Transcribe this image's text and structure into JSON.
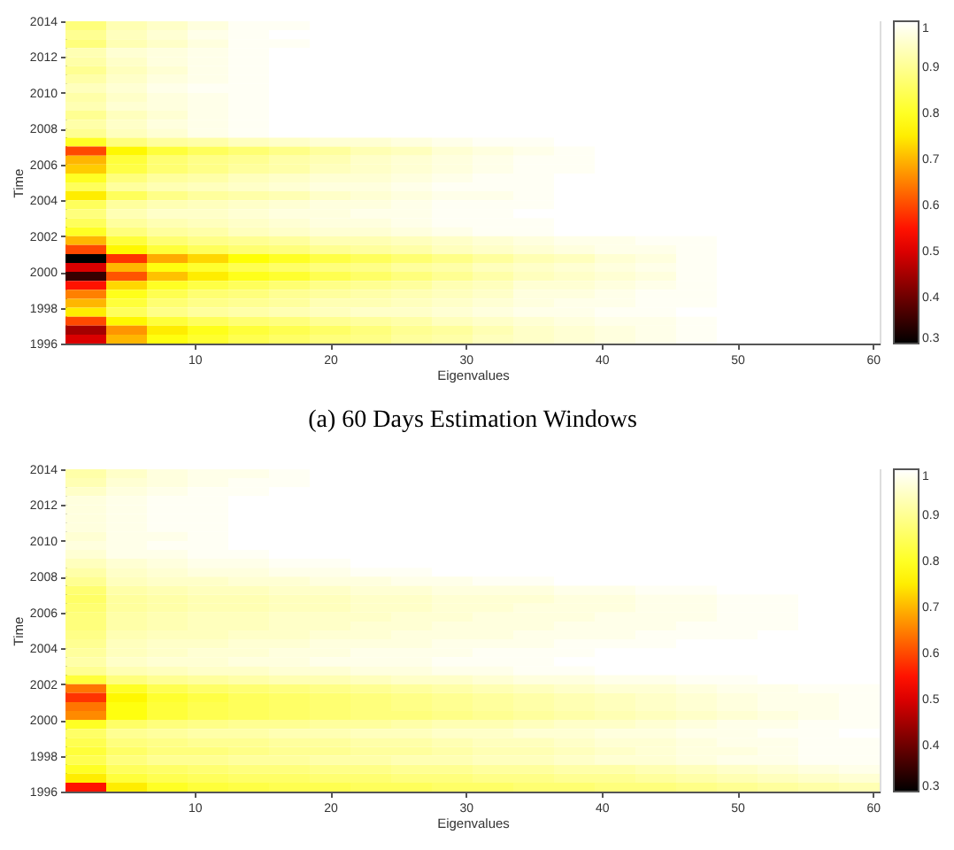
{
  "chart_data": [
    {
      "type": "heatmap",
      "xlabel": "Eigenvalues",
      "ylabel": "Time",
      "annotations": [
        "(a) 60 Days Estimation Windows"
      ],
      "x": [
        2,
        5,
        8,
        11,
        14,
        17,
        20,
        23,
        26,
        29,
        32,
        35,
        38,
        41,
        44,
        47,
        50,
        53,
        56,
        59
      ],
      "y": [
        2013.75,
        2013.25,
        2012.75,
        2012.25,
        2011.75,
        2011.25,
        2010.75,
        2010.25,
        2009.75,
        2009.25,
        2008.75,
        2008.25,
        2007.75,
        2007.25,
        2006.75,
        2006.25,
        2005.75,
        2005.25,
        2004.75,
        2004.25,
        2003.75,
        2003.25,
        2002.75,
        2002.25,
        2001.75,
        2001.25,
        2000.75,
        2000.25,
        1999.75,
        1999.25,
        1998.75,
        1998.25,
        1997.75,
        1997.25,
        1996.75,
        1996.25
      ],
      "xlim": [
        0.5,
        60.5
      ],
      "ylim": [
        1996,
        2014
      ],
      "xticks": [
        10,
        20,
        30,
        40,
        50,
        60
      ],
      "yticks": [
        1996,
        1998,
        2000,
        2002,
        2004,
        2006,
        2008,
        2010,
        2012,
        2014
      ],
      "clim": [
        0.3,
        1
      ],
      "cticks": [
        0.3,
        0.4,
        0.5,
        0.6,
        0.7,
        0.8,
        0.9,
        1
      ],
      "cells": [
        [
          0.88,
          0.93,
          0.95,
          0.97,
          0.99,
          0.99,
          1,
          1,
          1,
          1,
          1,
          1,
          1,
          1,
          1,
          1,
          1,
          1,
          1,
          1
        ],
        [
          0.9,
          0.94,
          0.96,
          0.98,
          0.99,
          1,
          1,
          1,
          1,
          1,
          1,
          1,
          1,
          1,
          1,
          1,
          1,
          1,
          1,
          1
        ],
        [
          0.88,
          0.93,
          0.95,
          0.97,
          0.99,
          0.99,
          1,
          1,
          1,
          1,
          1,
          1,
          1,
          1,
          1,
          1,
          1,
          1,
          1,
          1
        ],
        [
          0.93,
          0.96,
          0.97,
          0.98,
          0.99,
          1,
          1,
          1,
          1,
          1,
          1,
          1,
          1,
          1,
          1,
          1,
          1,
          1,
          1,
          1
        ],
        [
          0.92,
          0.95,
          0.97,
          0.98,
          0.99,
          1,
          1,
          1,
          1,
          1,
          1,
          1,
          1,
          1,
          1,
          1,
          1,
          1,
          1,
          1
        ],
        [
          0.9,
          0.94,
          0.96,
          0.98,
          0.99,
          1,
          1,
          1,
          1,
          1,
          1,
          1,
          1,
          1,
          1,
          1,
          1,
          1,
          1,
          1
        ],
        [
          0.92,
          0.95,
          0.97,
          0.98,
          0.99,
          1,
          1,
          1,
          1,
          1,
          1,
          1,
          1,
          1,
          1,
          1,
          1,
          1,
          1,
          1
        ],
        [
          0.94,
          0.96,
          0.98,
          0.99,
          0.99,
          1,
          1,
          1,
          1,
          1,
          1,
          1,
          1,
          1,
          1,
          1,
          1,
          1,
          1,
          1
        ],
        [
          0.92,
          0.95,
          0.97,
          0.98,
          0.99,
          1,
          1,
          1,
          1,
          1,
          1,
          1,
          1,
          1,
          1,
          1,
          1,
          1,
          1,
          1
        ],
        [
          0.93,
          0.96,
          0.97,
          0.98,
          0.99,
          1,
          1,
          1,
          1,
          1,
          1,
          1,
          1,
          1,
          1,
          1,
          1,
          1,
          1,
          1
        ],
        [
          0.9,
          0.94,
          0.96,
          0.98,
          0.99,
          1,
          1,
          1,
          1,
          1,
          1,
          1,
          1,
          1,
          1,
          1,
          1,
          1,
          1,
          1
        ],
        [
          0.92,
          0.95,
          0.97,
          0.98,
          0.99,
          1,
          1,
          1,
          1,
          1,
          1,
          1,
          1,
          1,
          1,
          1,
          1,
          1,
          1,
          1
        ],
        [
          0.9,
          0.94,
          0.96,
          0.98,
          0.99,
          1,
          1,
          1,
          1,
          1,
          1,
          1,
          1,
          1,
          1,
          1,
          1,
          1,
          1,
          1
        ],
        [
          0.8,
          0.88,
          0.91,
          0.92,
          0.94,
          0.95,
          0.96,
          0.96,
          0.97,
          0.98,
          0.99,
          0.99,
          1,
          1,
          1,
          1,
          1,
          1,
          1,
          1
        ],
        [
          0.6,
          0.76,
          0.82,
          0.85,
          0.87,
          0.89,
          0.91,
          0.93,
          0.94,
          0.96,
          0.97,
          0.98,
          0.99,
          1,
          1,
          1,
          1,
          1,
          1,
          1
        ],
        [
          0.7,
          0.82,
          0.87,
          0.89,
          0.9,
          0.92,
          0.93,
          0.95,
          0.96,
          0.97,
          0.98,
          0.99,
          0.99,
          1,
          1,
          1,
          1,
          1,
          1,
          1
        ],
        [
          0.72,
          0.83,
          0.87,
          0.89,
          0.91,
          0.92,
          0.94,
          0.95,
          0.96,
          0.97,
          0.98,
          0.99,
          0.99,
          1,
          1,
          1,
          1,
          1,
          1,
          1
        ],
        [
          0.8,
          0.88,
          0.91,
          0.92,
          0.94,
          0.95,
          0.96,
          0.96,
          0.97,
          0.98,
          0.99,
          0.99,
          1,
          1,
          1,
          1,
          1,
          1,
          1,
          1
        ],
        [
          0.85,
          0.91,
          0.93,
          0.94,
          0.95,
          0.96,
          0.97,
          0.97,
          0.98,
          0.99,
          0.99,
          0.99,
          1,
          1,
          1,
          1,
          1,
          1,
          1,
          1
        ],
        [
          0.75,
          0.85,
          0.89,
          0.91,
          0.92,
          0.93,
          0.95,
          0.96,
          0.97,
          0.98,
          0.98,
          0.99,
          1,
          1,
          1,
          1,
          1,
          1,
          1,
          1
        ],
        [
          0.85,
          0.91,
          0.93,
          0.94,
          0.95,
          0.96,
          0.97,
          0.97,
          0.98,
          0.99,
          0.99,
          0.99,
          1,
          1,
          1,
          1,
          1,
          1,
          1,
          1
        ],
        [
          0.88,
          0.93,
          0.95,
          0.95,
          0.96,
          0.97,
          0.97,
          0.98,
          0.98,
          0.99,
          0.99,
          1,
          1,
          1,
          1,
          1,
          1,
          1,
          1,
          1
        ],
        [
          0.85,
          0.91,
          0.93,
          0.94,
          0.95,
          0.96,
          0.97,
          0.97,
          0.98,
          0.99,
          0.99,
          0.99,
          1,
          1,
          1,
          1,
          1,
          1,
          1,
          1
        ],
        [
          0.8,
          0.88,
          0.91,
          0.92,
          0.94,
          0.95,
          0.96,
          0.96,
          0.97,
          0.98,
          0.99,
          0.99,
          1,
          1,
          1,
          1,
          1,
          1,
          1,
          1
        ],
        [
          0.7,
          0.82,
          0.87,
          0.89,
          0.9,
          0.91,
          0.93,
          0.93,
          0.94,
          0.95,
          0.96,
          0.97,
          0.98,
          0.98,
          0.99,
          0.99,
          1,
          1,
          1,
          1
        ],
        [
          0.6,
          0.76,
          0.82,
          0.85,
          0.87,
          0.88,
          0.9,
          0.91,
          0.92,
          0.94,
          0.95,
          0.96,
          0.97,
          0.98,
          0.98,
          0.99,
          1,
          1,
          1,
          1
        ],
        [
          0.3,
          0.58,
          0.69,
          0.73,
          0.77,
          0.8,
          0.83,
          0.85,
          0.87,
          0.89,
          0.91,
          0.93,
          0.94,
          0.96,
          0.97,
          0.99,
          1,
          1,
          1,
          1
        ],
        [
          0.5,
          0.7,
          0.78,
          0.81,
          0.84,
          0.86,
          0.88,
          0.89,
          0.91,
          0.92,
          0.94,
          0.95,
          0.96,
          0.97,
          0.98,
          0.99,
          1,
          1,
          1,
          1
        ],
        [
          0.35,
          0.61,
          0.71,
          0.75,
          0.79,
          0.81,
          0.84,
          0.86,
          0.88,
          0.9,
          0.92,
          0.94,
          0.95,
          0.96,
          0.97,
          0.99,
          1,
          1,
          1,
          1
        ],
        [
          0.55,
          0.73,
          0.8,
          0.83,
          0.85,
          0.87,
          0.89,
          0.9,
          0.91,
          0.93,
          0.94,
          0.96,
          0.96,
          0.97,
          0.98,
          0.99,
          1,
          1,
          1,
          1
        ],
        [
          0.65,
          0.79,
          0.84,
          0.87,
          0.88,
          0.9,
          0.91,
          0.92,
          0.93,
          0.94,
          0.95,
          0.97,
          0.97,
          0.98,
          0.99,
          0.99,
          1,
          1,
          1,
          1
        ],
        [
          0.7,
          0.82,
          0.87,
          0.89,
          0.9,
          0.91,
          0.93,
          0.93,
          0.94,
          0.95,
          0.96,
          0.97,
          0.98,
          0.98,
          0.99,
          0.99,
          1,
          1,
          1,
          1
        ],
        [
          0.75,
          0.85,
          0.89,
          0.91,
          0.92,
          0.93,
          0.94,
          0.95,
          0.95,
          0.96,
          0.97,
          0.98,
          0.98,
          0.99,
          0.99,
          1,
          1,
          1,
          1,
          1
        ],
        [
          0.6,
          0.76,
          0.82,
          0.85,
          0.87,
          0.88,
          0.9,
          0.91,
          0.92,
          0.94,
          0.95,
          0.96,
          0.97,
          0.98,
          0.98,
          0.99,
          1,
          1,
          1,
          1
        ],
        [
          0.45,
          0.67,
          0.75,
          0.79,
          0.82,
          0.84,
          0.86,
          0.88,
          0.9,
          0.91,
          0.93,
          0.95,
          0.96,
          0.97,
          0.98,
          0.99,
          1,
          1,
          1,
          1
        ],
        [
          0.5,
          0.7,
          0.78,
          0.81,
          0.84,
          0.86,
          0.88,
          0.89,
          0.91,
          0.92,
          0.94,
          0.95,
          0.96,
          0.97,
          0.98,
          0.99,
          1,
          1,
          1,
          1
        ]
      ]
    },
    {
      "type": "heatmap",
      "xlabel": "Eigenvalues",
      "ylabel": "Time",
      "x": [
        2,
        5,
        8,
        11,
        14,
        17,
        20,
        23,
        26,
        29,
        32,
        35,
        38,
        41,
        44,
        47,
        50,
        53,
        56,
        59
      ],
      "y": [
        2013.75,
        2013.25,
        2012.75,
        2012.25,
        2011.75,
        2011.25,
        2010.75,
        2010.25,
        2009.75,
        2009.25,
        2008.75,
        2008.25,
        2007.75,
        2007.25,
        2006.75,
        2006.25,
        2005.75,
        2005.25,
        2004.75,
        2004.25,
        2003.75,
        2003.25,
        2002.75,
        2002.25,
        2001.75,
        2001.25,
        2000.75,
        2000.25,
        1999.75,
        1999.25,
        1998.75,
        1998.25,
        1997.75,
        1997.25,
        1996.75,
        1996.25
      ],
      "xlim": [
        0.5,
        60.5
      ],
      "ylim": [
        1996,
        2014
      ],
      "xticks": [
        10,
        20,
        30,
        40,
        50,
        60
      ],
      "yticks": [
        1996,
        1998,
        2000,
        2002,
        2004,
        2006,
        2008,
        2010,
        2012,
        2014
      ],
      "clim": [
        0.3,
        1
      ],
      "cticks": [
        0.3,
        0.4,
        0.5,
        0.6,
        0.7,
        0.8,
        0.9,
        1
      ],
      "cells": [
        [
          0.92,
          0.95,
          0.97,
          0.98,
          0.98,
          0.99,
          1,
          1,
          1,
          1,
          1,
          1,
          1,
          1,
          1,
          1,
          1,
          1,
          1,
          1
        ],
        [
          0.93,
          0.96,
          0.97,
          0.98,
          0.99,
          0.99,
          1,
          1,
          1,
          1,
          1,
          1,
          1,
          1,
          1,
          1,
          1,
          1,
          1,
          1
        ],
        [
          0.95,
          0.97,
          0.98,
          0.99,
          0.99,
          1,
          1,
          1,
          1,
          1,
          1,
          1,
          1,
          1,
          1,
          1,
          1,
          1,
          1,
          1
        ],
        [
          0.97,
          0.98,
          0.99,
          0.99,
          1,
          1,
          1,
          1,
          1,
          1,
          1,
          1,
          1,
          1,
          1,
          1,
          1,
          1,
          1,
          1
        ],
        [
          0.97,
          0.98,
          0.99,
          0.99,
          1,
          1,
          1,
          1,
          1,
          1,
          1,
          1,
          1,
          1,
          1,
          1,
          1,
          1,
          1,
          1
        ],
        [
          0.97,
          0.98,
          0.99,
          0.99,
          1,
          1,
          1,
          1,
          1,
          1,
          1,
          1,
          1,
          1,
          1,
          1,
          1,
          1,
          1,
          1
        ],
        [
          0.97,
          0.98,
          0.99,
          0.99,
          1,
          1,
          1,
          1,
          1,
          1,
          1,
          1,
          1,
          1,
          1,
          1,
          1,
          1,
          1,
          1
        ],
        [
          0.96,
          0.98,
          0.98,
          0.99,
          1,
          1,
          1,
          1,
          1,
          1,
          1,
          1,
          1,
          1,
          1,
          1,
          1,
          1,
          1,
          1
        ],
        [
          0.97,
          0.98,
          0.99,
          0.99,
          1,
          1,
          1,
          1,
          1,
          1,
          1,
          1,
          1,
          1,
          1,
          1,
          1,
          1,
          1,
          1
        ],
        [
          0.96,
          0.98,
          0.98,
          0.99,
          0.99,
          1,
          1,
          1,
          1,
          1,
          1,
          1,
          1,
          1,
          1,
          1,
          1,
          1,
          1,
          1
        ],
        [
          0.94,
          0.96,
          0.97,
          0.98,
          0.98,
          0.99,
          0.99,
          1,
          1,
          1,
          1,
          1,
          1,
          1,
          1,
          1,
          1,
          1,
          1,
          1
        ],
        [
          0.92,
          0.95,
          0.96,
          0.97,
          0.97,
          0.98,
          0.98,
          0.99,
          0.99,
          1,
          1,
          1,
          1,
          1,
          1,
          1,
          1,
          1,
          1,
          1
        ],
        [
          0.9,
          0.94,
          0.95,
          0.95,
          0.96,
          0.96,
          0.97,
          0.97,
          0.98,
          0.98,
          0.99,
          0.99,
          1,
          1,
          1,
          1,
          1,
          1,
          1,
          1
        ],
        [
          0.87,
          0.92,
          0.93,
          0.94,
          0.94,
          0.95,
          0.95,
          0.96,
          0.96,
          0.97,
          0.97,
          0.97,
          0.98,
          0.98,
          0.99,
          0.99,
          1,
          1,
          1,
          1
        ],
        [
          0.86,
          0.91,
          0.92,
          0.93,
          0.93,
          0.94,
          0.94,
          0.95,
          0.95,
          0.96,
          0.96,
          0.96,
          0.97,
          0.97,
          0.98,
          0.98,
          0.99,
          0.99,
          1,
          1
        ],
        [
          0.87,
          0.91,
          0.92,
          0.93,
          0.93,
          0.94,
          0.94,
          0.95,
          0.95,
          0.96,
          0.96,
          0.97,
          0.97,
          0.97,
          0.98,
          0.98,
          0.99,
          0.99,
          1,
          1
        ],
        [
          0.88,
          0.92,
          0.93,
          0.94,
          0.94,
          0.95,
          0.95,
          0.95,
          0.96,
          0.96,
          0.97,
          0.97,
          0.97,
          0.98,
          0.98,
          0.98,
          0.99,
          0.99,
          1,
          1
        ],
        [
          0.88,
          0.92,
          0.93,
          0.94,
          0.94,
          0.95,
          0.95,
          0.96,
          0.96,
          0.97,
          0.97,
          0.97,
          0.98,
          0.98,
          0.98,
          0.99,
          0.99,
          0.99,
          1,
          1
        ],
        [
          0.89,
          0.93,
          0.94,
          0.94,
          0.95,
          0.95,
          0.96,
          0.96,
          0.97,
          0.97,
          0.97,
          0.98,
          0.98,
          0.98,
          0.99,
          0.99,
          0.99,
          1,
          1,
          1
        ],
        [
          0.9,
          0.94,
          0.95,
          0.95,
          0.96,
          0.96,
          0.97,
          0.97,
          0.97,
          0.98,
          0.98,
          0.98,
          0.99,
          0.99,
          0.99,
          1,
          1,
          1,
          1,
          1
        ],
        [
          0.91,
          0.94,
          0.95,
          0.96,
          0.96,
          0.97,
          0.97,
          0.98,
          0.98,
          0.98,
          0.99,
          0.99,
          0.99,
          1,
          1,
          1,
          1,
          1,
          1,
          1
        ],
        [
          0.92,
          0.95,
          0.96,
          0.96,
          0.97,
          0.97,
          0.98,
          0.98,
          0.98,
          0.99,
          0.99,
          0.99,
          1,
          1,
          1,
          1,
          1,
          1,
          1,
          1
        ],
        [
          0.9,
          0.93,
          0.94,
          0.95,
          0.95,
          0.96,
          0.96,
          0.97,
          0.97,
          0.98,
          0.98,
          0.99,
          0.99,
          1,
          1,
          1,
          1,
          1,
          1,
          1
        ],
        [
          0.82,
          0.88,
          0.9,
          0.91,
          0.92,
          0.93,
          0.93,
          0.94,
          0.95,
          0.95,
          0.96,
          0.97,
          0.97,
          0.98,
          0.98,
          0.99,
          0.99,
          1,
          1,
          1
        ],
        [
          0.64,
          0.8,
          0.84,
          0.86,
          0.87,
          0.88,
          0.89,
          0.9,
          0.91,
          0.92,
          0.93,
          0.94,
          0.95,
          0.96,
          0.96,
          0.97,
          0.98,
          0.98,
          0.99,
          0.99
        ],
        [
          0.58,
          0.76,
          0.81,
          0.83,
          0.85,
          0.86,
          0.87,
          0.88,
          0.89,
          0.9,
          0.91,
          0.92,
          0.93,
          0.94,
          0.95,
          0.96,
          0.97,
          0.98,
          0.98,
          0.99
        ],
        [
          0.64,
          0.78,
          0.82,
          0.84,
          0.85,
          0.86,
          0.87,
          0.88,
          0.89,
          0.9,
          0.91,
          0.92,
          0.93,
          0.94,
          0.95,
          0.96,
          0.97,
          0.98,
          0.98,
          0.99
        ],
        [
          0.66,
          0.78,
          0.82,
          0.84,
          0.85,
          0.86,
          0.87,
          0.88,
          0.88,
          0.89,
          0.9,
          0.91,
          0.92,
          0.93,
          0.94,
          0.95,
          0.96,
          0.97,
          0.98,
          0.99
        ],
        [
          0.8,
          0.86,
          0.88,
          0.89,
          0.9,
          0.9,
          0.91,
          0.91,
          0.92,
          0.93,
          0.93,
          0.94,
          0.95,
          0.95,
          0.96,
          0.97,
          0.98,
          0.98,
          0.99,
          0.99
        ],
        [
          0.86,
          0.9,
          0.91,
          0.92,
          0.92,
          0.93,
          0.93,
          0.94,
          0.94,
          0.95,
          0.95,
          0.96,
          0.96,
          0.97,
          0.97,
          0.98,
          0.98,
          0.99,
          0.99,
          1
        ],
        [
          0.84,
          0.88,
          0.89,
          0.9,
          0.9,
          0.91,
          0.91,
          0.92,
          0.92,
          0.93,
          0.94,
          0.94,
          0.95,
          0.96,
          0.96,
          0.97,
          0.98,
          0.98,
          0.99,
          0.99
        ],
        [
          0.82,
          0.86,
          0.88,
          0.88,
          0.89,
          0.9,
          0.9,
          0.91,
          0.91,
          0.92,
          0.93,
          0.93,
          0.94,
          0.95,
          0.96,
          0.97,
          0.97,
          0.98,
          0.99,
          0.99
        ],
        [
          0.84,
          0.88,
          0.9,
          0.9,
          0.91,
          0.91,
          0.92,
          0.92,
          0.93,
          0.93,
          0.94,
          0.94,
          0.95,
          0.96,
          0.96,
          0.97,
          0.98,
          0.98,
          0.99,
          0.99
        ],
        [
          0.8,
          0.85,
          0.86,
          0.87,
          0.88,
          0.88,
          0.89,
          0.89,
          0.9,
          0.9,
          0.91,
          0.91,
          0.92,
          0.92,
          0.93,
          0.94,
          0.95,
          0.96,
          0.97,
          0.98
        ],
        [
          0.75,
          0.82,
          0.84,
          0.85,
          0.86,
          0.86,
          0.87,
          0.87,
          0.88,
          0.88,
          0.89,
          0.89,
          0.9,
          0.9,
          0.91,
          0.92,
          0.93,
          0.94,
          0.95,
          0.96
        ],
        [
          0.55,
          0.75,
          0.8,
          0.82,
          0.83,
          0.84,
          0.84,
          0.85,
          0.85,
          0.86,
          0.86,
          0.87,
          0.87,
          0.88,
          0.88,
          0.89,
          0.9,
          0.91,
          0.92,
          0.93
        ]
      ]
    }
  ]
}
